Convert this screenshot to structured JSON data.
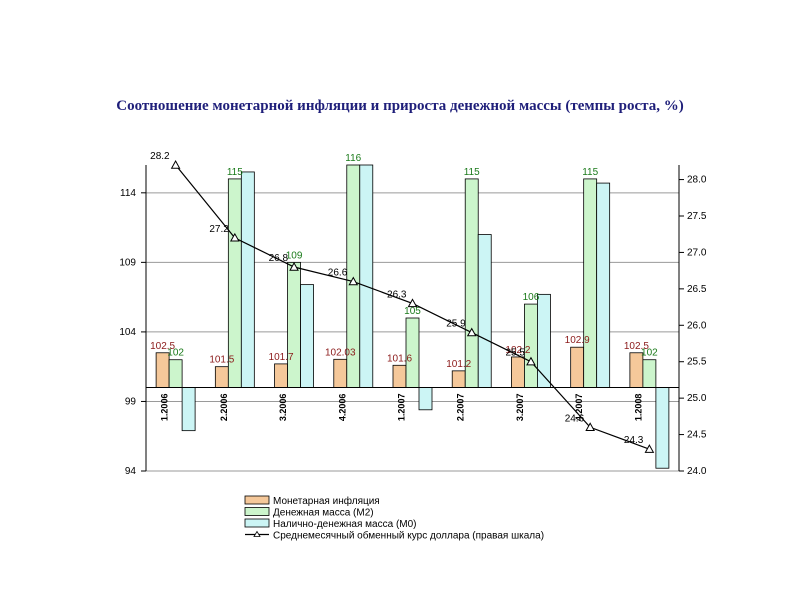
{
  "title": "Соотношение монетарной инфляции и прироста денежной массы (темпы роста, %)",
  "chart_data": {
    "type": "bar",
    "categories": [
      "1.2006",
      "2.2006",
      "3.2006",
      "4.2006",
      "1.2007",
      "2.2007",
      "3.2007",
      "4.2007",
      "1.2008"
    ],
    "left_axis": {
      "ylim": [
        94,
        116
      ],
      "ticks": [
        94,
        99,
        104,
        109,
        114
      ]
    },
    "right_axis": {
      "ylim": [
        24.0,
        28.2
      ],
      "ticks": [
        24.0,
        24.5,
        25.0,
        25.5,
        26.0,
        26.5,
        27.0,
        27.5,
        28.0
      ],
      "tick_labels": [
        "24.0",
        "24.5",
        "25.0",
        "25.5",
        "26.0",
        "26.5",
        "27.0",
        "27.5",
        "28.0"
      ]
    },
    "baseline": 100,
    "grid": true,
    "legend_position": "bottom",
    "series": [
      {
        "name": "Монетарная инфляция",
        "kind": "bar",
        "axis": "left",
        "color": "#f5c89a",
        "values": [
          102.5,
          101.5,
          101.7,
          102.03,
          101.6,
          101.2,
          102.2,
          102.9,
          102.5
        ],
        "labels": [
          "102.5",
          "101.5",
          "101.7",
          "102.03",
          "101.6",
          "101.2",
          "102.2",
          "102.9",
          "102.5"
        ]
      },
      {
        "name": "Денежная масса (М2)",
        "kind": "bar",
        "axis": "left",
        "color": "#ccf5cc",
        "values": [
          102,
          115,
          109,
          116,
          105,
          115,
          106,
          115,
          102
        ],
        "labels": [
          "102",
          "115",
          "109",
          "116",
          "105",
          "115",
          "106",
          "115",
          "102"
        ]
      },
      {
        "name": "Налично-денежная масса (М0)",
        "kind": "bar",
        "axis": "left",
        "color": "#ccf5f5",
        "values": [
          96.9,
          115.5,
          107.4,
          116,
          98.4,
          111,
          106.7,
          114.7,
          94.2
        ]
      },
      {
        "name": "Среднемесячный обменный курс доллара (правая шкала)",
        "kind": "line",
        "axis": "right",
        "color": "#000000",
        "marker": "triangle",
        "values": [
          28.2,
          27.2,
          26.8,
          26.6,
          26.3,
          25.9,
          25.5,
          24.6,
          24.3
        ],
        "labels": [
          "28.2",
          "27.2",
          "26.8",
          "26.6",
          "26.3",
          "25.9",
          "25.5",
          "24.6",
          "24.3"
        ]
      }
    ]
  }
}
